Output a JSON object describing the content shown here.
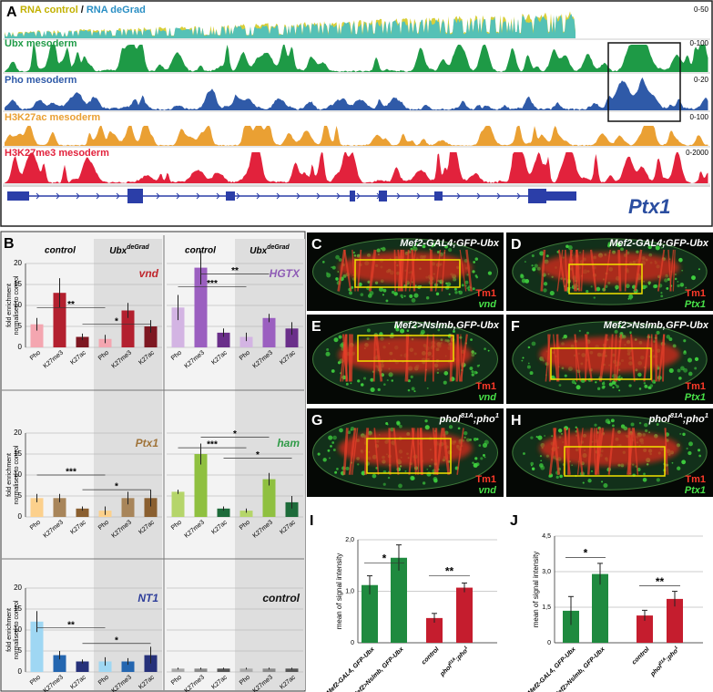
{
  "panel_a": {
    "label": "A",
    "rna": {
      "control": "RNA control",
      "slash": "/",
      "degrad": "RNA deGrad",
      "range": "0-50"
    },
    "tracks": [
      {
        "name": "Ubx mesoderm",
        "range": "0-100",
        "color": "#1e9a46"
      },
      {
        "name": "Pho mesoderm",
        "range": "0-20",
        "color": "#2f5aa8"
      },
      {
        "name": "H3K27ac mesoderm",
        "range": "0-100",
        "color": "#eaa033"
      },
      {
        "name": "H3K27me3 mesoderm",
        "range": "0-2000",
        "color": "#e2223c"
      }
    ],
    "gene": "Ptx1"
  },
  "panel_b": {
    "label": "B",
    "headers": [
      "control",
      [
        "Ubx",
        "deGrad"
      ],
      "control",
      [
        "Ubx",
        "deGrad"
      ]
    ],
    "y_label": [
      "fold enrichment",
      "normalised to control"
    ],
    "charts": [
      {
        "type": "bar",
        "title": "vnd",
        "title_color": "#c0262d",
        "categories": [
          "Pho",
          "K27me3",
          "K27ac",
          "Pho",
          "K27me3",
          "K27ac"
        ],
        "values": [
          5.5,
          13,
          2.5,
          2,
          8.8,
          5
        ],
        "errors": [
          1.5,
          3.5,
          0.8,
          1,
          1.8,
          1.5
        ],
        "colors": [
          "#f4a6b0",
          "#b3202f",
          "#7d1721"
        ],
        "ylim": [
          0,
          20
        ],
        "yticks": [
          0,
          5,
          10,
          15,
          20
        ],
        "significance": [
          "**",
          "*"
        ]
      },
      {
        "type": "bar",
        "title": "HGTX",
        "title_color": "#8e5bb5",
        "categories": [
          "Pho",
          "K27me3",
          "K27ac",
          "Pho",
          "K27me3",
          "K27ac"
        ],
        "values": [
          9.5,
          19,
          3.5,
          2.5,
          7,
          4.5
        ],
        "errors": [
          3,
          4,
          1,
          1,
          1,
          1.5
        ],
        "colors": [
          "#d3b4e3",
          "#9b5fc0",
          "#6a2f8a"
        ],
        "ylim": [
          0,
          20
        ],
        "yticks": [
          0,
          5,
          10,
          15,
          20
        ],
        "significance": [
          "**",
          "***"
        ]
      },
      {
        "type": "bar",
        "title": "Ptx1",
        "title_color": "#a0743a",
        "categories": [
          "Pho",
          "K27me3",
          "K27ac",
          "Pho",
          "K27me3",
          "K27ac"
        ],
        "values": [
          4.5,
          4.5,
          2,
          1.5,
          4.5,
          4.5
        ],
        "errors": [
          1,
          1,
          0.5,
          1,
          1.5,
          2
        ],
        "colors": [
          "#fcd08c",
          "#a8855a",
          "#8a5f30"
        ],
        "ylim": [
          0,
          20
        ],
        "yticks": [
          0,
          5,
          10,
          15,
          20
        ],
        "significance": [
          "***",
          "*"
        ]
      },
      {
        "type": "bar",
        "title": "ham",
        "title_color": "#2e9a46",
        "categories": [
          "Pho",
          "K27me3",
          "K27ac",
          "Pho",
          "K27me3",
          "K27ac"
        ],
        "values": [
          6,
          15,
          2,
          1.5,
          9,
          3.5
        ],
        "errors": [
          0.5,
          2.5,
          0.5,
          0.5,
          1.5,
          1.5
        ],
        "colors": [
          "#b5d56a",
          "#8fc040",
          "#1d6b3a"
        ],
        "ylim": [
          0,
          20
        ],
        "yticks": [
          0,
          5,
          10,
          15,
          20
        ],
        "significance": [
          "*",
          "***",
          "*"
        ]
      },
      {
        "type": "bar",
        "title": "NT1",
        "title_color": "#2e3e9a",
        "categories": [
          "Pho",
          "K27me3",
          "K27ac",
          "Pho",
          "K27me3",
          "K27ac"
        ],
        "values": [
          12,
          4,
          2.5,
          2.5,
          2.5,
          4
        ],
        "errors": [
          2.5,
          1,
          0.5,
          1,
          0.8,
          2
        ],
        "colors": [
          "#9fd7f3",
          "#2466b0",
          "#26317a"
        ],
        "ylim": [
          0,
          20
        ],
        "yticks": [
          0,
          5,
          10,
          15,
          20
        ],
        "significance": [
          "**",
          "*"
        ]
      },
      {
        "type": "bar",
        "title": "control",
        "title_color": "#111111",
        "categories": [
          "Pho",
          "K27me3",
          "K27ac",
          "Pho",
          "K27me3",
          "K27ac"
        ],
        "values": [
          0.8,
          0.8,
          0.8,
          0.8,
          0.8,
          0.8
        ],
        "errors": [
          0.2,
          0.2,
          0.2,
          0.2,
          0.2,
          0.2
        ],
        "colors": [
          "#a9a9a9",
          "#8a8a8a",
          "#555555"
        ],
        "ylim": [
          0,
          20
        ],
        "yticks": [
          0,
          5,
          10,
          15,
          20
        ],
        "significance": []
      }
    ]
  },
  "microscopy": [
    {
      "label": "C",
      "genotype": [
        "Mef2-GAL4;GFP-Ubx"
      ],
      "stain": "Tm1",
      "target": "vnd"
    },
    {
      "label": "D",
      "genotype": [
        "Mef2-GAL4;GFP-Ubx"
      ],
      "stain": "Tm1",
      "target": "Ptx1"
    },
    {
      "label": "E",
      "genotype": [
        "Mef2>Nslmb,GFP-Ubx"
      ],
      "stain": "Tm1",
      "target": "vnd"
    },
    {
      "label": "F",
      "genotype": [
        "Mef2>Nslmb,GFP-Ubx"
      ],
      "stain": "Tm1",
      "target": "Ptx1"
    },
    {
      "label": "G",
      "genotype": [
        "phol",
        "81A",
        ";pho",
        "1"
      ],
      "stain": "Tm1",
      "target": "vnd"
    },
    {
      "label": "H",
      "genotype": [
        "phol",
        "81A",
        ";pho",
        "1"
      ],
      "stain": "Tm1",
      "target": "Ptx1"
    }
  ],
  "panel_i": {
    "label": "I",
    "type": "bar",
    "y_label": "mean of signal intensity",
    "categories": [
      "Mef2-GAL4, GFP-Ubx",
      "Mef2>Nslmb, GFP-Ubx",
      "control",
      [
        "phol",
        "81A",
        ";pho",
        "1"
      ]
    ],
    "values": [
      1.12,
      1.65,
      0.48,
      1.07
    ],
    "errors": [
      0.18,
      0.25,
      0.09,
      0.09
    ],
    "colors": [
      "#1f8a3f",
      "#1f8a3f",
      "#c51d2e",
      "#c51d2e"
    ],
    "ylim": [
      0,
      2
    ],
    "yticks": [
      0,
      {
        "value": 1,
        "label": "1,0"
      },
      {
        "value": 2,
        "label": "2,0"
      }
    ],
    "significance": [
      "*",
      "**"
    ]
  },
  "panel_j": {
    "label": "J",
    "type": "bar",
    "y_label": "mean of signal intensity",
    "categories": [
      "Mef2-GAL4, GFP-Ubx",
      "Mef2>Nslmb, GFP-Ubx",
      "control",
      [
        "phol",
        "81A",
        ";pho",
        "1"
      ]
    ],
    "values": [
      1.35,
      2.9,
      1.15,
      1.85
    ],
    "errors": [
      0.6,
      0.45,
      0.22,
      0.32
    ],
    "colors": [
      "#1f8a3f",
      "#1f8a3f",
      "#c51d2e",
      "#c51d2e"
    ],
    "ylim": [
      0,
      4.5
    ],
    "yticks": [
      0,
      {
        "value": 1.5,
        "label": "1,5"
      },
      {
        "value": 3,
        "label": "3,0"
      },
      {
        "value": 4.5,
        "label": "4,5"
      }
    ],
    "significance": [
      "*",
      "**"
    ]
  }
}
